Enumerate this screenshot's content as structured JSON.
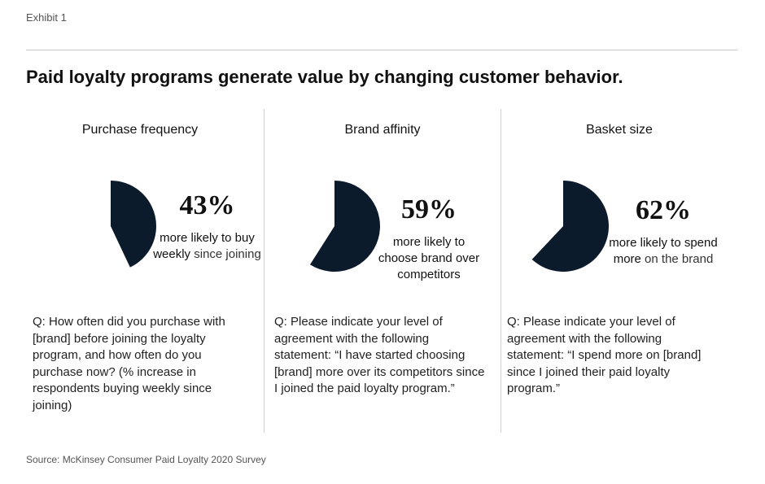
{
  "exhibit_label": "Exhibit 1",
  "title": "Paid loyalty programs generate value by changing customer behavior.",
  "source": "Source: McKinsey Consumer Paid Loyalty 2020 Survey",
  "colors": {
    "pie_fill": "#0c1b2c",
    "divider": "#cfcfcf"
  },
  "chart_data": {
    "type": "pie",
    "panels": [
      {
        "heading": "Purchase frequency",
        "value": 43,
        "value_label": "43%",
        "desc_lines": [
          [
            {
              "text": "more likely to buy",
              "style": "bold"
            }
          ],
          [
            {
              "text": "weekly",
              "style": "bold"
            },
            {
              "text": " since joining",
              "style": "light"
            }
          ]
        ],
        "question": "Q: How often did you purchase with [brand] before joining the loyalty program, and how often do you purchase now? (% increase in respondents buying weekly since joining)"
      },
      {
        "heading": "Brand affinity",
        "value": 59,
        "value_label": "59%",
        "desc_lines": [
          [
            {
              "text": "more likely to",
              "style": "bold"
            }
          ],
          [
            {
              "text": "choose brand over",
              "style": "bold"
            }
          ],
          [
            {
              "text": "competitors",
              "style": "bold"
            }
          ]
        ],
        "question": "Q: Please indicate your level of agreement with the following statement: “I have started choosing [brand] more over its competitors since I joined the paid loyalty program.”"
      },
      {
        "heading": "Basket size",
        "value": 62,
        "value_label": "62%",
        "desc_lines": [
          [
            {
              "text": "more likely to spend",
              "style": "bold"
            }
          ],
          [
            {
              "text": "more",
              "style": "bold"
            },
            {
              "text": " on the brand",
              "style": "light"
            }
          ]
        ],
        "question": "Q: Please indicate your level of agreement with the following statement: “I spend more on [brand] since I joined their paid loyalty program.”"
      }
    ]
  }
}
